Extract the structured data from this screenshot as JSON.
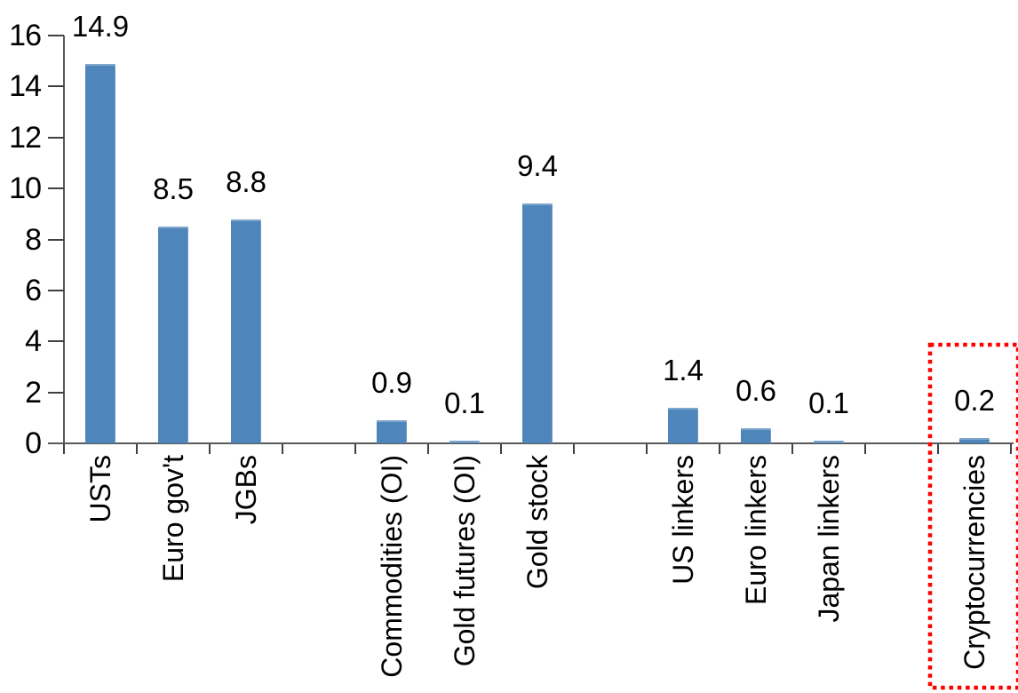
{
  "chart_data": {
    "type": "bar",
    "title": "",
    "xlabel": "",
    "ylabel": "",
    "categories": [
      "USTs",
      "Euro gov't",
      "JGBs",
      "",
      "Commodities (OI)",
      "Gold futures (OI)",
      "Gold stock",
      "",
      "US linkers",
      "Euro linkers",
      "Japan linkers",
      "",
      "Cryptocurrencies"
    ],
    "values": [
      14.9,
      8.5,
      8.8,
      null,
      0.9,
      0.1,
      9.4,
      null,
      1.4,
      0.6,
      0.1,
      null,
      0.2
    ],
    "data_labels": [
      "14.9",
      "8.5",
      "8.8",
      "",
      "0.9",
      "0.1",
      "9.4",
      "",
      "1.4",
      "0.6",
      "0.1",
      "",
      "0.2"
    ],
    "ylim": [
      0,
      16
    ],
    "yticks": [
      0,
      2,
      4,
      6,
      8,
      10,
      12,
      14,
      16
    ],
    "grid": false,
    "legend": "none",
    "bar_color": "#4E86BB",
    "axis_color": "#595959",
    "text_color": "#000000",
    "background_color": "#FFFFFF",
    "highlight": {
      "category": "Cryptocurrencies",
      "style": "dotted-box",
      "color": "#FF0000"
    }
  }
}
